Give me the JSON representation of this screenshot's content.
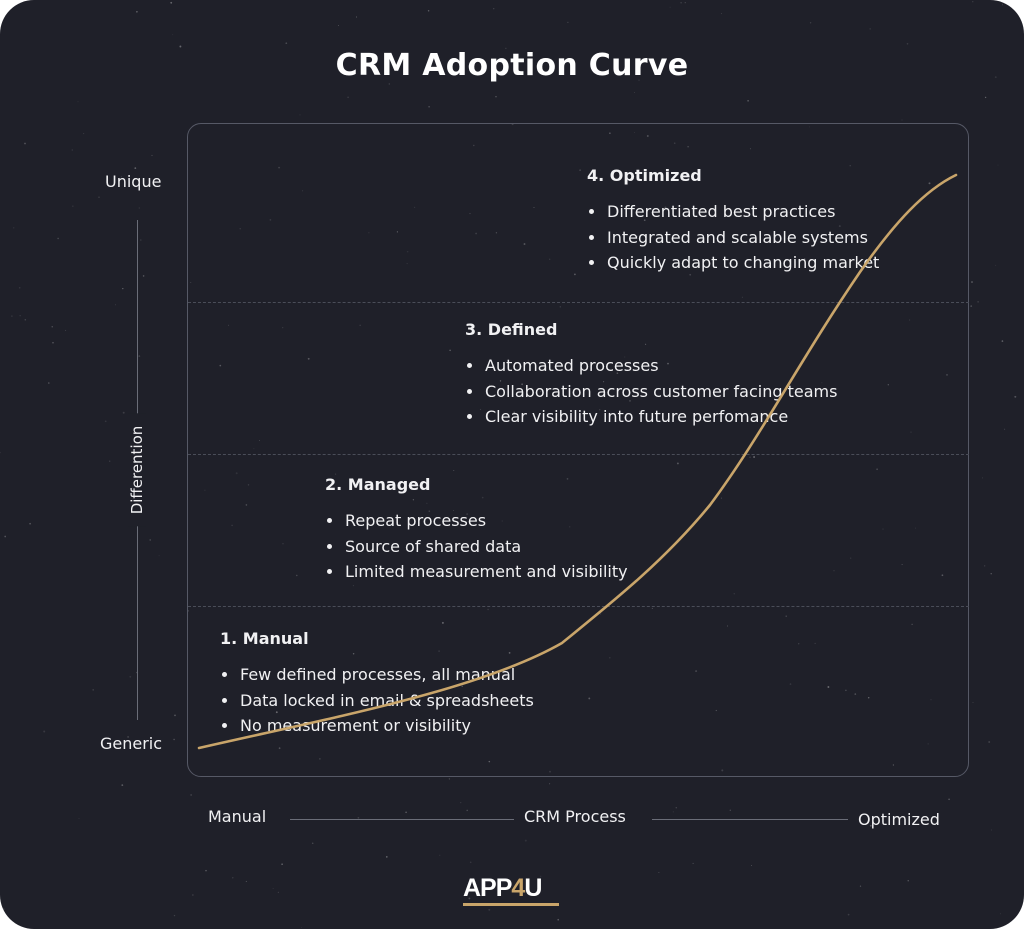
{
  "title": "CRM Adoption Curve",
  "y_axis": {
    "top": "Unique",
    "bottom": "Generic",
    "title": "Differention"
  },
  "x_axis": {
    "left": "Manual",
    "center": "CRM Process",
    "right": "Optimized"
  },
  "stages": [
    {
      "title": "1. Manual",
      "bullets": [
        "Few defined processes, all manual",
        "Data locked in email & spreadsheets",
        "No measurement or visibility"
      ]
    },
    {
      "title": "2. Managed",
      "bullets": [
        "Repeat processes",
        "Source of shared data",
        "Limited measurement and visibility"
      ]
    },
    {
      "title": "3. Defined",
      "bullets": [
        "Automated processes",
        "Collaboration across customer facing teams",
        "Clear visibility into future perfomance"
      ]
    },
    {
      "title": "4. Optimized",
      "bullets": [
        "Differentiated best practices",
        "Integrated and scalable systems",
        "Quickly adapt to changing market"
      ]
    }
  ],
  "logo": {
    "prefix": "APP",
    "accent": "4",
    "suffix": "U"
  },
  "colors": {
    "background": "#1f2029",
    "curve": "#c9a56a",
    "text": "#f1f1f3",
    "accent": "#c9a56a"
  }
}
